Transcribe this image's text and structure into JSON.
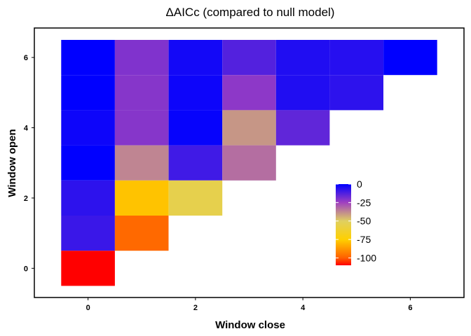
{
  "chart_data": {
    "type": "heatmap",
    "title": "ΔAICc (compared to null model)",
    "xlabel": "Window close",
    "ylabel": "Window open",
    "xlim": [
      -0.5,
      6.5
    ],
    "ylim": [
      -0.8,
      6.8
    ],
    "x_ticks": [
      "0",
      "2",
      "4",
      "6"
    ],
    "y_ticks": [
      "0",
      "2",
      "4",
      "6"
    ],
    "grid": false,
    "color_scale": {
      "stops": [
        {
          "value": 0,
          "color": "#0000ff"
        },
        {
          "value": -25,
          "color": "#a040c0"
        },
        {
          "value": -50,
          "color": "#e0d060"
        },
        {
          "value": -75,
          "color": "#ffd000"
        },
        {
          "value": -100,
          "color": "#ff6000"
        },
        {
          "value": -110,
          "color": "#ff0000"
        }
      ],
      "legend_labels": [
        "0",
        "-25",
        "-50",
        "-75",
        "-100"
      ],
      "legend_position": "inside-right"
    },
    "cells": [
      {
        "x": 0,
        "y": 6,
        "value": 0
      },
      {
        "x": 1,
        "y": 6,
        "value": -20
      },
      {
        "x": 2,
        "y": 6,
        "value": -3
      },
      {
        "x": 3,
        "y": 6,
        "value": -13
      },
      {
        "x": 4,
        "y": 6,
        "value": -5
      },
      {
        "x": 5,
        "y": 6,
        "value": -6
      },
      {
        "x": 6,
        "y": 6,
        "value": 0
      },
      {
        "x": 0,
        "y": 5,
        "value": 0
      },
      {
        "x": 1,
        "y": 5,
        "value": -21
      },
      {
        "x": 2,
        "y": 5,
        "value": -2
      },
      {
        "x": 3,
        "y": 5,
        "value": -22
      },
      {
        "x": 4,
        "y": 5,
        "value": -5
      },
      {
        "x": 5,
        "y": 5,
        "value": -7
      },
      {
        "x": 0,
        "y": 4,
        "value": -2
      },
      {
        "x": 1,
        "y": 4,
        "value": -21
      },
      {
        "x": 2,
        "y": 4,
        "value": -1
      },
      {
        "x": 3,
        "y": 4,
        "value": -40
      },
      {
        "x": 4,
        "y": 4,
        "value": -15
      },
      {
        "x": 0,
        "y": 3,
        "value": 0
      },
      {
        "x": 1,
        "y": 3,
        "value": -37
      },
      {
        "x": 2,
        "y": 3,
        "value": -10
      },
      {
        "x": 3,
        "y": 3,
        "value": -33
      },
      {
        "x": 0,
        "y": 2,
        "value": -7
      },
      {
        "x": 1,
        "y": 2,
        "value": -78
      },
      {
        "x": 2,
        "y": 2,
        "value": -55
      },
      {
        "x": 0,
        "y": 1,
        "value": -9
      },
      {
        "x": 1,
        "y": 1,
        "value": -98
      },
      {
        "x": 0,
        "y": 0,
        "value": -110
      }
    ]
  }
}
